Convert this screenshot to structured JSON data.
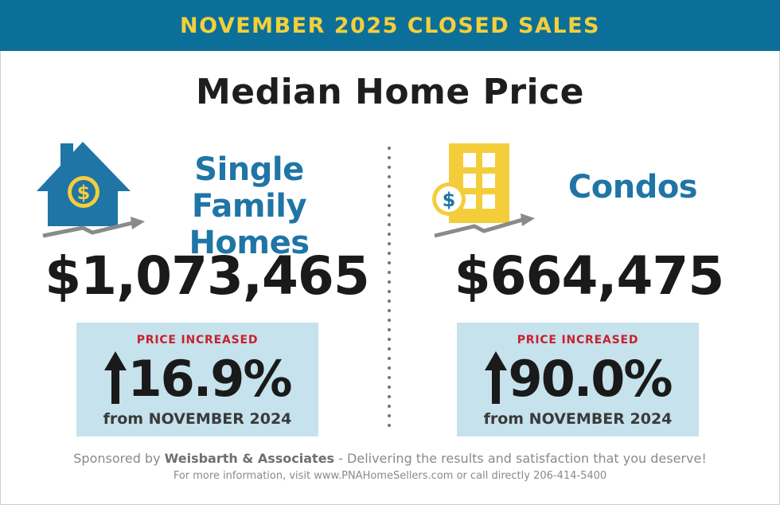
{
  "banner": {
    "title": "NOVEMBER 2025 CLOSED SALES"
  },
  "main_title": "Median Home Price",
  "colors": {
    "banner_bg": "#0c6f99",
    "banner_text": "#f2d03b",
    "accent_blue": "#1f75a6",
    "accent_yellow": "#f4cd3b",
    "increase_red": "#c8202e",
    "box_bg": "#c6e2ec"
  },
  "segments": [
    {
      "icon": "house-dollar-icon",
      "label_line1": "Single Family",
      "label_line2": "Homes",
      "price": "$1,073,465",
      "change_kicker": "PRICE INCREASED",
      "change_pct": "16.9%",
      "change_from": "from NOVEMBER 2024"
    },
    {
      "icon": "condo-building-dollar-icon",
      "label_line1": "Condos",
      "price": "$664,475",
      "change_kicker": "PRICE INCREASED",
      "change_pct": "90.0%",
      "change_from": "from NOVEMBER 2024"
    }
  ],
  "footer": {
    "sponsor_prefix": "Sponsored by",
    "sponsor_name": "Weisbarth & Associates",
    "sponsor_suffix": "- Delivering the results and satisfaction that you deserve!",
    "contact": "For more information, visit www.PNAHomeSellers.com or call directly 206-414-5400"
  }
}
